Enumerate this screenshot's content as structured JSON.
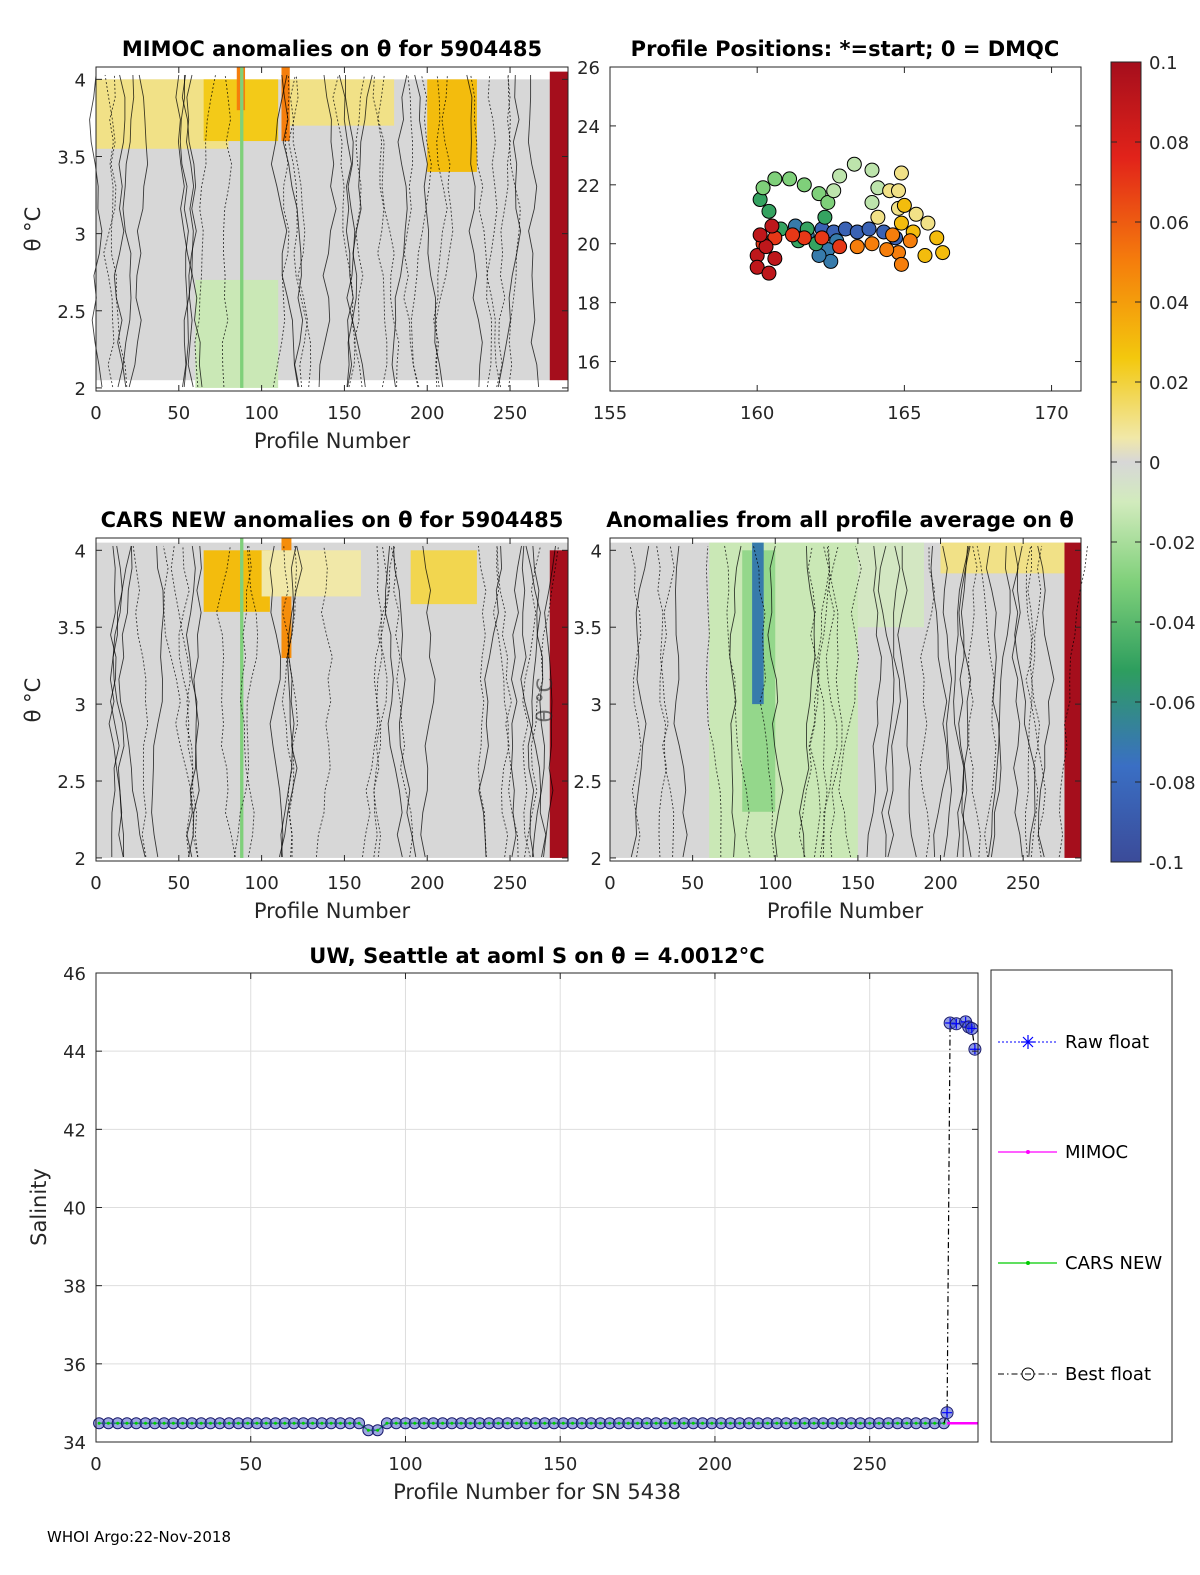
{
  "footer": "WHOI Argo:22-Nov-2018",
  "colorbar": {
    "min": -0.1,
    "max": 0.1,
    "tick_values": [
      0.1,
      0.08,
      0.06,
      0.04,
      0.02,
      0,
      -0.02,
      -0.04,
      -0.06,
      -0.08,
      -0.1
    ],
    "tick_labels": [
      "0.1",
      "0.08",
      "0.06",
      "0.04",
      "0.02",
      "0",
      "-0.02",
      "-0.04",
      "-0.06",
      "-0.08",
      "-0.1"
    ]
  },
  "chart_data": [
    {
      "id": "mimoc",
      "type": "heatmap",
      "title": "MIMOC anomalies on θ  for 5904485",
      "xlabel": "Profile Number",
      "ylabel": "θ °C",
      "xlim": [
        0,
        285
      ],
      "ylim": [
        1.98,
        4.08
      ],
      "xticks": [
        0,
        50,
        100,
        150,
        200,
        250
      ],
      "xtick_labels": [
        "0",
        "50",
        "100",
        "150",
        "200",
        "250"
      ],
      "yticks": [
        2,
        2.5,
        3,
        3.5,
        4
      ],
      "ytick_labels": [
        "2",
        "2.5",
        "3",
        "3.5",
        "4"
      ],
      "colorscale": [
        -0.1,
        0.1
      ],
      "features": [
        {
          "x0": 0,
          "x1": 285,
          "y0": 2.05,
          "y1": 4.0,
          "value": 0
        },
        {
          "x0": 0,
          "x1": 80,
          "y0": 3.55,
          "y1": 4.0,
          "value": 0.015
        },
        {
          "x0": 65,
          "x1": 110,
          "y0": 3.6,
          "y1": 4.0,
          "value": 0.025
        },
        {
          "x0": 200,
          "x1": 230,
          "y0": 3.4,
          "y1": 4.0,
          "value": 0.03
        },
        {
          "x0": 115,
          "x1": 180,
          "y0": 3.7,
          "y1": 4.0,
          "value": 0.015
        },
        {
          "x0": 60,
          "x1": 110,
          "y0": 2.0,
          "y1": 2.7,
          "value": -0.012
        },
        {
          "x0": 112,
          "x1": 117,
          "y0": 3.6,
          "y1": 4.1,
          "value": 0.05
        },
        {
          "x0": 85,
          "x1": 90,
          "y0": 3.8,
          "y1": 4.1,
          "value": 0.05
        },
        {
          "x0": 87,
          "x1": 89,
          "y0": 2.0,
          "y1": 4.1,
          "value": -0.03
        },
        {
          "x0": 274,
          "x1": 285,
          "y0": 2.05,
          "y1": 4.05,
          "value": 0.1
        }
      ]
    },
    {
      "id": "positions",
      "type": "scatter",
      "title": "Profile Positions: *=start; 0 = DMQC",
      "xlabel": "",
      "ylabel": "",
      "xlim": [
        155,
        171
      ],
      "ylim": [
        15,
        26
      ],
      "xticks": [
        155,
        160,
        165,
        170
      ],
      "xtick_labels": [
        "155",
        "160",
        "165",
        "170"
      ],
      "yticks": [
        16,
        18,
        20,
        22,
        24,
        26
      ],
      "ytick_labels": [
        "16",
        "18",
        "20",
        "22",
        "24",
        "26"
      ],
      "path": [
        [
          162.2,
          20.5
        ],
        [
          162.6,
          20.4
        ],
        [
          163.0,
          20.5
        ],
        [
          163.4,
          20.4
        ],
        [
          163.8,
          20.5
        ],
        [
          164.3,
          20.4
        ],
        [
          164.7,
          20.2
        ],
        [
          162.7,
          20.1
        ],
        [
          162.4,
          19.8
        ],
        [
          162.5,
          19.4
        ],
        [
          162.1,
          19.6
        ],
        [
          161.7,
          20.3
        ],
        [
          161.3,
          20.6
        ],
        [
          160.8,
          20.5
        ],
        [
          162.3,
          20.9
        ],
        [
          161.4,
          20.1
        ],
        [
          161.7,
          20.5
        ],
        [
          162.0,
          20.0
        ],
        [
          160.4,
          21.1
        ],
        [
          160.1,
          21.5
        ],
        [
          160.2,
          21.9
        ],
        [
          160.6,
          22.2
        ],
        [
          161.1,
          22.2
        ],
        [
          161.6,
          22.0
        ],
        [
          162.1,
          21.7
        ],
        [
          162.4,
          21.4
        ],
        [
          162.6,
          21.8
        ],
        [
          162.8,
          22.3
        ],
        [
          163.3,
          22.7
        ],
        [
          163.9,
          22.5
        ],
        [
          164.1,
          21.9
        ],
        [
          163.9,
          21.4
        ],
        [
          164.1,
          20.9
        ],
        [
          164.5,
          21.8
        ],
        [
          164.9,
          22.4
        ],
        [
          164.8,
          21.8
        ],
        [
          164.8,
          21.2
        ],
        [
          165.4,
          21.0
        ],
        [
          165.8,
          20.7
        ],
        [
          166.1,
          20.2
        ],
        [
          166.3,
          19.7
        ],
        [
          165.7,
          19.6
        ],
        [
          165.3,
          20.4
        ],
        [
          165.0,
          21.3
        ],
        [
          164.9,
          20.7
        ],
        [
          164.6,
          20.3
        ],
        [
          165.2,
          20.1
        ],
        [
          164.8,
          19.7
        ],
        [
          164.9,
          19.3
        ],
        [
          164.4,
          19.8
        ],
        [
          163.9,
          20.0
        ],
        [
          163.4,
          19.9
        ],
        [
          162.8,
          19.9
        ],
        [
          162.2,
          20.2
        ],
        [
          161.6,
          20.2
        ],
        [
          161.2,
          20.3
        ],
        [
          160.6,
          20.2
        ],
        [
          160.2,
          20.0
        ],
        [
          160.0,
          19.6
        ],
        [
          160.0,
          19.2
        ],
        [
          160.4,
          19.0
        ],
        [
          160.6,
          19.5
        ],
        [
          160.3,
          19.9
        ],
        [
          160.1,
          20.3
        ],
        [
          160.5,
          20.6
        ]
      ]
    },
    {
      "id": "cars",
      "type": "heatmap",
      "title": "CARS NEW anomalies on θ for 5904485",
      "xlabel": "Profile Number",
      "ylabel": "θ °C",
      "xlim": [
        0,
        285
      ],
      "ylim": [
        1.98,
        4.08
      ],
      "xticks": [
        0,
        50,
        100,
        150,
        200,
        250
      ],
      "xtick_labels": [
        "0",
        "50",
        "100",
        "150",
        "200",
        "250"
      ],
      "yticks": [
        2,
        2.5,
        3,
        3.5,
        4
      ],
      "ytick_labels": [
        "2",
        "2.5",
        "3",
        "3.5",
        "4"
      ],
      "colorscale": [
        -0.1,
        0.1
      ],
      "features": [
        {
          "x0": 0,
          "x1": 285,
          "y0": 2.0,
          "y1": 4.05,
          "value": 0
        },
        {
          "x0": 65,
          "x1": 105,
          "y0": 3.6,
          "y1": 4.0,
          "value": 0.03
        },
        {
          "x0": 112,
          "x1": 118,
          "y0": 3.3,
          "y1": 4.1,
          "value": 0.045
        },
        {
          "x0": 190,
          "x1": 230,
          "y0": 3.65,
          "y1": 4.0,
          "value": 0.02
        },
        {
          "x0": 100,
          "x1": 160,
          "y0": 3.7,
          "y1": 4.0,
          "value": 0.012
        },
        {
          "x0": 87,
          "x1": 89,
          "y0": 2.0,
          "y1": 4.1,
          "value": -0.03
        },
        {
          "x0": 274,
          "x1": 285,
          "y0": 2.0,
          "y1": 4.0,
          "value": 0.1
        }
      ]
    },
    {
      "id": "average",
      "type": "heatmap",
      "title": "Anomalies from all profile average on θ",
      "xlabel": "Profile Number",
      "ylabel": "θ °C",
      "xlim": [
        0,
        285
      ],
      "ylim": [
        1.98,
        4.08
      ],
      "xticks": [
        0,
        50,
        100,
        150,
        200,
        250
      ],
      "xtick_labels": [
        "0",
        "50",
        "100",
        "150",
        "200",
        "250"
      ],
      "yticks": [
        2,
        2.5,
        3,
        3.5,
        4
      ],
      "ytick_labels": [
        "2",
        "2.5",
        "3",
        "3.5",
        "4"
      ],
      "colorscale": [
        -0.1,
        0.1
      ],
      "features": [
        {
          "x0": 0,
          "x1": 285,
          "y0": 2.0,
          "y1": 4.05,
          "value": 0
        },
        {
          "x0": 60,
          "x1": 150,
          "y0": 2.0,
          "y1": 4.05,
          "value": -0.012
        },
        {
          "x0": 80,
          "x1": 100,
          "y0": 2.3,
          "y1": 4.0,
          "value": -0.025
        },
        {
          "x0": 86,
          "x1": 93,
          "y0": 3.0,
          "y1": 4.05,
          "value": -0.07
        },
        {
          "x0": 150,
          "x1": 190,
          "y0": 3.5,
          "y1": 4.05,
          "value": -0.008
        },
        {
          "x0": 200,
          "x1": 275,
          "y0": 3.85,
          "y1": 4.05,
          "value": 0.015
        },
        {
          "x0": 275,
          "x1": 285,
          "y0": 2.0,
          "y1": 4.05,
          "value": 0.1
        }
      ]
    },
    {
      "id": "salinity",
      "type": "line",
      "title": "UW, Seattle at aoml S on θ = 4.0012°C",
      "xlabel": "Profile Number for SN 5438",
      "ylabel": "Salinity",
      "xlim": [
        0,
        285
      ],
      "ylim": [
        34,
        46
      ],
      "xticks": [
        0,
        50,
        100,
        150,
        200,
        250
      ],
      "xtick_labels": [
        "0",
        "50",
        "100",
        "150",
        "200",
        "250"
      ],
      "yticks": [
        34,
        36,
        38,
        40,
        42,
        44,
        46
      ],
      "ytick_labels": [
        "34",
        "36",
        "38",
        "40",
        "42",
        "44",
        "46"
      ],
      "grid": true,
      "legend": [
        "Raw float",
        "MIMOC",
        "CARS NEW",
        "Best float"
      ],
      "baseline": {
        "x_start": 1,
        "x_end": 274,
        "step": 3,
        "value": 34.48
      },
      "dip": {
        "x": 89,
        "value": 34.3
      },
      "series": [
        {
          "name": "Raw float",
          "color": "#0000ff",
          "x": [
            275,
            276,
            278,
            281,
            282,
            283,
            284
          ],
          "y": [
            34.75,
            44.72,
            44.7,
            44.75,
            44.62,
            44.58,
            44.05
          ]
        },
        {
          "name": "MIMOC",
          "color": "#ff00ff",
          "x": [
            275,
            285
          ],
          "y": [
            34.48,
            34.48
          ]
        },
        {
          "name": "CARS NEW",
          "color": "#00cc00",
          "x": [],
          "y": []
        },
        {
          "name": "Best float",
          "color": "#000000",
          "x": [
            275,
            276,
            278,
            281,
            282,
            283,
            284
          ],
          "y": [
            34.75,
            44.72,
            44.7,
            44.75,
            44.62,
            44.58,
            44.05
          ]
        }
      ]
    }
  ]
}
